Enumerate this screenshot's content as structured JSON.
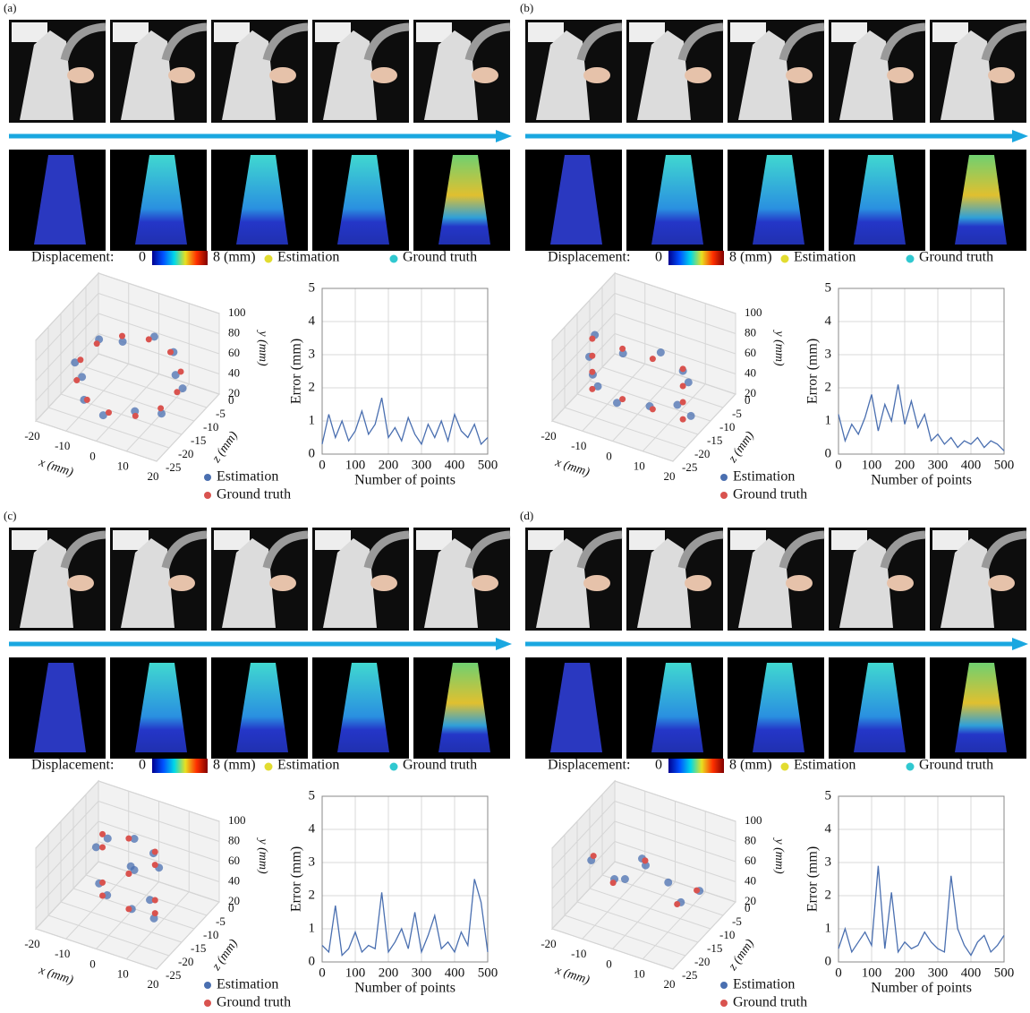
{
  "panels": [
    {
      "label": "(a)",
      "colorbar": {
        "label": "Displacement:",
        "ticks": [
          0,
          {
            "value": 8,
            "label": "8 (mm)"
          }
        ],
        "colors": [
          "#00008f",
          "#0050ff",
          "#00d8e8",
          "#e8e020",
          "#ff3000",
          "#800000"
        ]
      },
      "legend": [
        {
          "name": "Estimation",
          "color": "#e2dc30"
        },
        {
          "name": "Ground truth",
          "color": "#30c8d0"
        }
      ]
    },
    {
      "label": "(b)",
      "colorbar": {
        "label": "Displacement:",
        "ticks": [
          0,
          {
            "value": 8,
            "label": "8 (mm)"
          }
        ],
        "colors": [
          "#00008f",
          "#0050ff",
          "#00d8e8",
          "#e8e020",
          "#ff3000",
          "#800000"
        ]
      },
      "legend": [
        {
          "name": "Estimation",
          "color": "#e2dc30"
        },
        {
          "name": "Ground truth",
          "color": "#30c8d0"
        }
      ]
    },
    {
      "label": "(c)",
      "colorbar": {
        "label": "Displacement:",
        "ticks": [
          0,
          {
            "value": 8,
            "label": "8 (mm)"
          }
        ],
        "colors": [
          "#00008f",
          "#0050ff",
          "#00d8e8",
          "#e8e020",
          "#ff3000",
          "#800000"
        ]
      },
      "legend": [
        {
          "name": "Estimation",
          "color": "#e2dc30"
        },
        {
          "name": "Ground truth",
          "color": "#30c8d0"
        }
      ]
    },
    {
      "label": "(d)",
      "colorbar": {
        "label": "Displacement:",
        "ticks": [
          0,
          {
            "value": 8,
            "label": "8 (mm)"
          }
        ],
        "colors": [
          "#00008f",
          "#0050ff",
          "#00d8e8",
          "#e8e020",
          "#ff3000",
          "#800000"
        ]
      },
      "legend": [
        {
          "name": "Estimation",
          "color": "#e2dc30"
        },
        {
          "name": "Ground truth",
          "color": "#30c8d0"
        }
      ]
    }
  ],
  "chart_data": [
    {
      "type": "scatter3d",
      "xlabel": "x (mm)",
      "ylabel": "y (mm)",
      "zlabel": "z (mm)",
      "xlim": [
        -20,
        20
      ],
      "xticks": [
        -20,
        -10,
        0,
        10,
        20
      ],
      "ylim": [
        20,
        100
      ],
      "yticks": [
        20,
        40,
        60,
        80,
        100
      ],
      "zlim": [
        -25,
        0
      ],
      "zticks": [
        -25,
        -20,
        -15,
        -10,
        -5,
        0
      ],
      "series": [
        {
          "name": "Estimation",
          "color": "#4a6fb0",
          "x": [
            17,
            13,
            9,
            1,
            -7,
            -14,
            -17,
            -13,
            -9,
            -1,
            7,
            15
          ],
          "y": [
            52,
            56,
            64,
            66,
            61,
            59,
            49,
            44,
            36,
            34,
            38,
            41
          ],
          "z": [
            -11,
            -9,
            -5,
            -3,
            -6,
            -7,
            -13,
            -15,
            -19,
            -21,
            -18,
            -17
          ]
        },
        {
          "name": "Ground truth",
          "color": "#d9534f",
          "x": [
            16,
            13.9,
            8,
            0,
            -8,
            -13.9,
            -16,
            -13.9,
            -8,
            0,
            8,
            13.9
          ],
          "y": [
            50,
            57.5,
            63,
            65,
            63,
            57.5,
            50,
            42.5,
            37,
            35,
            37,
            42.5
          ],
          "z": [
            -12,
            -8,
            -5,
            -4,
            -5,
            -8,
            -12,
            -16,
            -19,
            -20,
            -19,
            -16
          ]
        }
      ]
    },
    {
      "type": "line",
      "xlabel": "Number of points",
      "ylabel": "Error (mm)",
      "xlim": [
        0,
        500
      ],
      "xticks": [
        0,
        100,
        200,
        300,
        400,
        500
      ],
      "ylim": [
        0,
        5
      ],
      "yticks": [
        0,
        1,
        2,
        3,
        4,
        5
      ],
      "grid": true,
      "series": [
        {
          "color": "#4a6fb0",
          "x": [
            0,
            20,
            40,
            60,
            80,
            100,
            120,
            140,
            160,
            180,
            200,
            220,
            240,
            260,
            280,
            300,
            320,
            340,
            360,
            380,
            400,
            420,
            440,
            460,
            480,
            500
          ],
          "values": [
            0.3,
            1.2,
            0.5,
            1.0,
            0.4,
            0.7,
            1.3,
            0.6,
            0.9,
            1.7,
            0.5,
            0.8,
            0.4,
            1.1,
            0.6,
            0.3,
            0.9,
            0.5,
            1.0,
            0.4,
            1.2,
            0.7,
            0.5,
            0.9,
            0.3,
            0.5
          ]
        }
      ]
    },
    {
      "type": "scatter3d",
      "xlabel": "x (mm)",
      "ylabel": "y (mm)",
      "zlabel": "z (mm)",
      "xlim": [
        -20,
        20
      ],
      "xticks": [
        -20,
        -10,
        0,
        10,
        20
      ],
      "ylim": [
        20,
        100
      ],
      "yticks": [
        20,
        40,
        60,
        80,
        100
      ],
      "zlim": [
        -25,
        0
      ],
      "zticks": [
        -25,
        -20,
        -15,
        -10,
        -5,
        0
      ],
      "series": [
        {
          "name": "Estimation",
          "color": "#4a6fb0",
          "x": [
            -14,
            -6,
            4,
            16,
            14,
            16,
            15,
            6,
            -4,
            -15,
            -16,
            -14
          ],
          "y": [
            31,
            28,
            32,
            29,
            46,
            65,
            78,
            82,
            79,
            81,
            61,
            48
          ],
          "z": [
            -14,
            -16,
            -15,
            -13,
            -16,
            -14,
            -15,
            -13,
            -16,
            -14,
            -15,
            -16
          ]
        },
        {
          "name": "Ground truth",
          "color": "#d9534f",
          "x": [
            -15,
            -5,
            5,
            15,
            15,
            15,
            15,
            5,
            -5,
            -15,
            -15,
            -15
          ],
          "y": [
            30,
            30,
            30,
            30,
            47,
            63,
            80,
            80,
            80,
            80,
            63,
            47
          ],
          "z": [
            -15,
            -15,
            -15,
            -15,
            -15,
            -15,
            -15,
            -15,
            -15,
            -15,
            -15,
            -15
          ]
        }
      ]
    },
    {
      "type": "line",
      "xlabel": "Number of points",
      "ylabel": "Error (mm)",
      "xlim": [
        0,
        500
      ],
      "xticks": [
        0,
        100,
        200,
        300,
        400,
        500
      ],
      "ylim": [
        0,
        5
      ],
      "yticks": [
        0,
        1,
        2,
        3,
        4,
        5
      ],
      "grid": true,
      "series": [
        {
          "color": "#4a6fb0",
          "x": [
            0,
            20,
            40,
            60,
            80,
            100,
            120,
            140,
            160,
            180,
            200,
            220,
            240,
            260,
            280,
            300,
            320,
            340,
            360,
            380,
            400,
            420,
            440,
            460,
            480,
            500
          ],
          "values": [
            1.2,
            0.4,
            0.9,
            0.6,
            1.1,
            1.8,
            0.7,
            1.5,
            1.0,
            2.1,
            0.9,
            1.6,
            0.8,
            1.2,
            0.4,
            0.6,
            0.3,
            0.5,
            0.2,
            0.4,
            0.3,
            0.5,
            0.2,
            0.4,
            0.3,
            0.1
          ]
        }
      ]
    },
    {
      "type": "scatter3d",
      "xlabel": "x (mm)",
      "ylabel": "y (mm)",
      "zlabel": "z (mm)",
      "xlim": [
        -20,
        20
      ],
      "xticks": [
        -20,
        -10,
        0,
        10,
        20
      ],
      "ylim": [
        20,
        100
      ],
      "yticks": [
        20,
        40,
        60,
        80,
        100
      ],
      "zlim": [
        -25,
        0
      ],
      "zticks": [
        -25,
        -20,
        -15,
        -10,
        -5,
        0
      ],
      "series": [
        {
          "name": "Estimation",
          "color": "#4a6fb0",
          "x": [
            1,
            9,
            10,
            -1,
            -9,
            -8,
            1,
            10,
            7,
            1,
            -10,
            -7
          ],
          "y": [
            93,
            92,
            76,
            61,
            44,
            28,
            26,
            31,
            41,
            62,
            79,
            88
          ],
          "z": [
            -11,
            -13,
            -12,
            -10,
            -13,
            -11,
            -12,
            -14,
            -12,
            -11,
            -13,
            -12
          ]
        },
        {
          "name": "Ground truth",
          "color": "#d9534f",
          "x": [
            0,
            8.7,
            8.7,
            0,
            -8.7,
            -8.7,
            0,
            8.7,
            8.7,
            0,
            -8.7,
            -8.7
          ],
          "y": [
            95,
            90.5,
            77.5,
            60,
            42.5,
            29.5,
            25,
            29.5,
            42.5,
            60,
            77.5,
            90.5
          ],
          "z": [
            -12,
            -12,
            -12,
            -12,
            -12,
            -12,
            -12,
            -12,
            -12,
            -12,
            -12,
            -12
          ]
        }
      ]
    },
    {
      "type": "line",
      "xlabel": "Number of points",
      "ylabel": "Error (mm)",
      "xlim": [
        0,
        500
      ],
      "xticks": [
        0,
        100,
        200,
        300,
        400,
        500
      ],
      "ylim": [
        0,
        5
      ],
      "yticks": [
        0,
        1,
        2,
        3,
        4,
        5
      ],
      "grid": true,
      "series": [
        {
          "color": "#4a6fb0",
          "x": [
            0,
            20,
            40,
            60,
            80,
            100,
            120,
            140,
            160,
            180,
            200,
            220,
            240,
            260,
            280,
            300,
            320,
            340,
            360,
            380,
            400,
            420,
            440,
            460,
            480,
            500
          ],
          "values": [
            0.5,
            0.3,
            1.7,
            0.2,
            0.4,
            0.9,
            0.3,
            0.5,
            0.4,
            2.1,
            0.3,
            0.6,
            1.0,
            0.4,
            1.5,
            0.3,
            0.8,
            1.4,
            0.4,
            0.6,
            0.3,
            0.9,
            0.5,
            2.5,
            1.8,
            0.3
          ]
        }
      ]
    },
    {
      "type": "scatter3d",
      "xlabel": "x (mm)",
      "ylabel": "y (mm)",
      "zlabel": "z (mm)",
      "xlim": [
        -20,
        20
      ],
      "xticks": [
        -20,
        -10,
        0,
        10,
        20
      ],
      "ylim": [
        20,
        100
      ],
      "yticks": [
        20,
        40,
        60,
        80,
        100
      ],
      "zlim": [
        -25,
        0
      ],
      "zticks": [
        -25,
        -20,
        -15,
        -10,
        -5,
        0
      ],
      "series": [
        {
          "name": "Estimation",
          "color": "#4a6fb0",
          "x": [
            1,
            -11,
            18,
            -17,
            11,
            -1,
            -5,
            6
          ],
          "y": [
            72,
            41,
            61,
            59,
            40,
            74,
            55,
            52
          ],
          "z": [
            -13,
            -11,
            -12,
            -13,
            -11,
            -12,
            -14,
            -10
          ]
        },
        {
          "name": "Ground truth",
          "color": "#d9534f",
          "x": [
            0,
            -10.6,
            17.1,
            -17.1,
            10.6,
            0
          ],
          "y": [
            73,
            40.4,
            60.6,
            60.6,
            40.4,
            73
          ],
          "z": [
            -12,
            -12,
            -12,
            -12,
            -12,
            -12
          ]
        }
      ]
    },
    {
      "type": "line",
      "xlabel": "Number of points",
      "ylabel": "Error (mm)",
      "xlim": [
        0,
        500
      ],
      "xticks": [
        0,
        100,
        200,
        300,
        400,
        500
      ],
      "ylim": [
        0,
        5
      ],
      "yticks": [
        0,
        1,
        2,
        3,
        4,
        5
      ],
      "grid": true,
      "series": [
        {
          "color": "#4a6fb0",
          "x": [
            0,
            20,
            40,
            60,
            80,
            100,
            120,
            140,
            160,
            180,
            200,
            220,
            240,
            260,
            280,
            300,
            320,
            340,
            360,
            380,
            400,
            420,
            440,
            460,
            480,
            500
          ],
          "values": [
            0.4,
            1.0,
            0.3,
            0.6,
            0.9,
            0.5,
            2.9,
            0.4,
            2.1,
            0.3,
            0.6,
            0.4,
            0.5,
            0.9,
            0.6,
            0.4,
            0.3,
            2.6,
            1.0,
            0.5,
            0.2,
            0.6,
            0.8,
            0.3,
            0.5,
            0.8
          ]
        }
      ]
    }
  ]
}
